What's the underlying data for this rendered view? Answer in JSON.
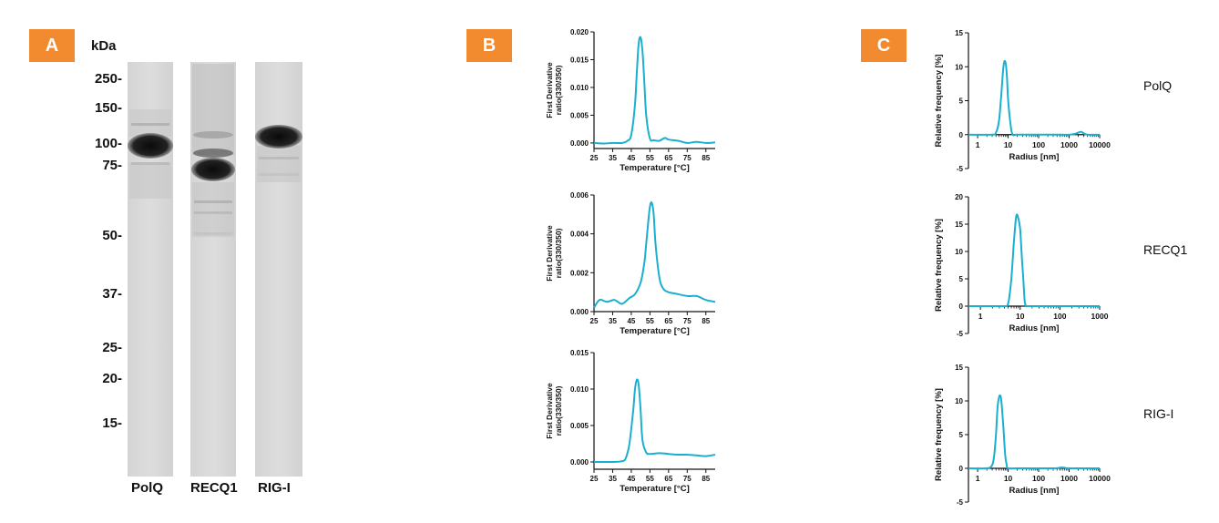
{
  "panels": {
    "a": {
      "badge": "A",
      "mw_unit": "kDa",
      "markers": [
        "250-",
        "150-",
        "100-",
        "75-",
        "50-",
        "37-",
        "25-",
        "20-",
        "15-"
      ],
      "lanes": [
        "PolQ",
        "RECQ1",
        "RIG-I"
      ]
    },
    "b": {
      "badge": "B"
    },
    "c": {
      "badge": "C"
    }
  },
  "proteins": [
    "PolQ",
    "RECQ1",
    "RIG-I"
  ],
  "colors": {
    "badge": "#f28a30",
    "curve": "#1aafd0"
  },
  "chart_data": [
    {
      "panel": "B",
      "type": "line",
      "protein": "PolQ",
      "xlabel": "Temperature [°C]",
      "ylabel_lines": [
        "First Derivative",
        "ratio(330/350)"
      ],
      "xlim": [
        25,
        90
      ],
      "ylim": [
        -0.001,
        0.02
      ],
      "xticks": [
        25,
        35,
        45,
        55,
        65,
        75,
        85
      ],
      "yticks": [
        "0.000",
        "0.005",
        "0.010",
        "0.015",
        "0.020"
      ],
      "x": [
        25,
        30,
        35,
        40,
        43,
        45,
        47,
        48,
        49,
        50,
        51,
        52,
        53,
        55,
        57,
        60,
        63,
        65,
        70,
        75,
        80,
        85,
        90
      ],
      "y": [
        0.0,
        -0.0001,
        0.0,
        0.0,
        0.0004,
        0.0015,
        0.007,
        0.013,
        0.018,
        0.019,
        0.0165,
        0.011,
        0.005,
        0.0008,
        0.0005,
        0.0004,
        0.0009,
        0.0006,
        0.0004,
        0.0,
        0.0002,
        0.0,
        0.0001
      ]
    },
    {
      "panel": "B",
      "type": "line",
      "protein": "RECQ1",
      "xlabel": "Temperature [°C]",
      "ylabel_lines": [
        "First Derivative",
        "ratio(330/350)"
      ],
      "xlim": [
        25,
        90
      ],
      "ylim": [
        0,
        0.006
      ],
      "xticks": [
        25,
        35,
        45,
        55,
        65,
        75,
        85
      ],
      "yticks": [
        "0.000",
        "0.002",
        "0.004",
        "0.006"
      ],
      "x": [
        25,
        28,
        32,
        36,
        40,
        44,
        47,
        50,
        52,
        53,
        54,
        55,
        56,
        57,
        58,
        60,
        62,
        65,
        70,
        75,
        80,
        85,
        90
      ],
      "y": [
        0.0002,
        0.0006,
        0.0005,
        0.0006,
        0.0004,
        0.0007,
        0.0009,
        0.0015,
        0.0025,
        0.0035,
        0.0045,
        0.0054,
        0.0056,
        0.005,
        0.0035,
        0.0018,
        0.0012,
        0.001,
        0.0009,
        0.0008,
        0.0008,
        0.0006,
        0.0005
      ]
    },
    {
      "panel": "B",
      "type": "line",
      "protein": "RIG-I",
      "xlabel": "Temperature [°C]",
      "ylabel_lines": [
        "First Derivative",
        "ratio(330/350)"
      ],
      "xlim": [
        25,
        90
      ],
      "ylim": [
        -0.001,
        0.015
      ],
      "xticks": [
        25,
        35,
        45,
        55,
        65,
        75,
        85
      ],
      "yticks": [
        "0.000",
        "0.005",
        "0.010",
        "0.015"
      ],
      "x": [
        25,
        30,
        35,
        40,
        42,
        44,
        46,
        47,
        48,
        49,
        50,
        51,
        53,
        55,
        60,
        65,
        70,
        75,
        80,
        85,
        90
      ],
      "y": [
        0.0,
        0.0,
        0.0,
        0.0001,
        0.0005,
        0.0025,
        0.007,
        0.01,
        0.0113,
        0.0105,
        0.007,
        0.003,
        0.0013,
        0.0011,
        0.0012,
        0.0011,
        0.001,
        0.001,
        0.0009,
        0.0008,
        0.001
      ]
    },
    {
      "panel": "C",
      "type": "line",
      "protein": "PolQ",
      "xscale": "log",
      "xlabel": "Radius [nm]",
      "ylabel": "Relative frequency [%]",
      "xlim": [
        0.5,
        10000
      ],
      "ylim": [
        -5,
        15
      ],
      "xticks": [
        1,
        10,
        100,
        1000,
        10000
      ],
      "yticks": [
        -5,
        0,
        5,
        10,
        15
      ],
      "x": [
        0.5,
        3,
        4,
        5,
        6,
        7,
        8,
        9,
        10,
        12,
        14,
        20,
        100,
        500,
        1000,
        1500,
        2000,
        2500,
        3000,
        4000,
        10000
      ],
      "y": [
        0,
        0,
        0.3,
        2,
        6,
        10,
        10.8,
        9,
        5,
        1.5,
        0,
        0,
        0,
        0,
        0,
        0.1,
        0.3,
        0.4,
        0.2,
        0,
        0
      ]
    },
    {
      "panel": "C",
      "type": "line",
      "protein": "RECQ1",
      "xscale": "log",
      "xlabel": "Radius [nm]",
      "ylabel": "Relative frequency [%]",
      "xlim": [
        0.5,
        1000
      ],
      "ylim": [
        -5,
        20
      ],
      "xticks": [
        1,
        10,
        100,
        1000
      ],
      "yticks": [
        -5,
        0,
        5,
        10,
        15,
        20
      ],
      "x": [
        0.5,
        3,
        4,
        5,
        6,
        7,
        8,
        9,
        10,
        11,
        12,
        13,
        14,
        15,
        20,
        100,
        1000
      ],
      "y": [
        0,
        0,
        0,
        0.5,
        5,
        12,
        16.5,
        16,
        14,
        9,
        5,
        1,
        0,
        0,
        0,
        0,
        0
      ]
    },
    {
      "panel": "C",
      "type": "line",
      "protein": "RIG-I",
      "xscale": "log",
      "xlabel": "Radius [nm]",
      "ylabel": "Relative frequency [%]",
      "xlim": [
        0.5,
        10000
      ],
      "ylim": [
        -5,
        15
      ],
      "xticks": [
        1,
        10,
        100,
        1000,
        10000
      ],
      "yticks": [
        -5,
        0,
        5,
        10,
        15
      ],
      "x": [
        0.5,
        2,
        3,
        3.5,
        4,
        4.5,
        5,
        5.5,
        6,
        7,
        8,
        9,
        10,
        20,
        300,
        500,
        700,
        1000,
        10000
      ],
      "y": [
        0,
        0,
        0.5,
        2,
        5,
        9,
        10.5,
        10.8,
        10,
        6,
        2,
        0.5,
        0,
        0,
        0,
        0.1,
        0.1,
        0,
        0
      ]
    }
  ]
}
